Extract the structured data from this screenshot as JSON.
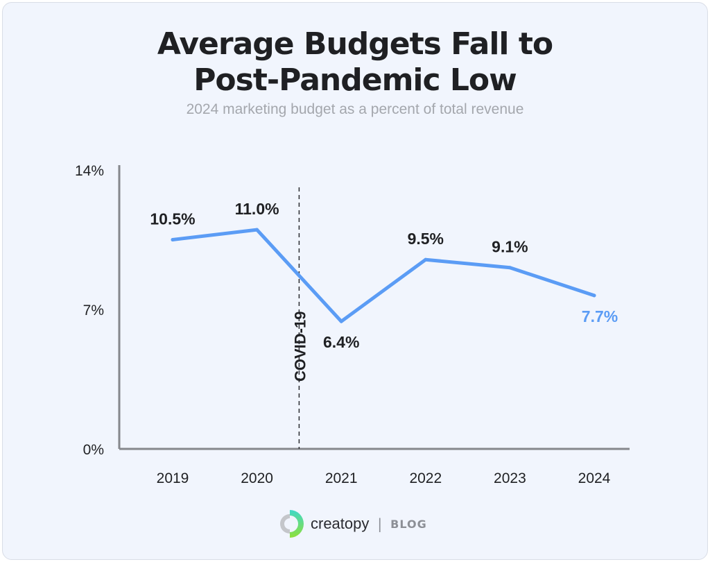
{
  "colors": {
    "line": "#5b9cf5",
    "text": "#1f2023",
    "axis": "#85878c",
    "highlight": "#5b9cf5"
  },
  "chart_data": {
    "type": "line",
    "title": "Average Budgets Fall to Post-Pandemic Low",
    "title_lines": [
      "Average Budgets Fall to",
      "Post-Pandemic Low"
    ],
    "subtitle": "2024 marketing budget as a percent of total revenue",
    "categories": [
      "2019",
      "2020",
      "2021",
      "2022",
      "2023",
      "2024"
    ],
    "values": [
      10.5,
      11.0,
      6.4,
      9.5,
      9.1,
      7.7
    ],
    "data_labels": [
      "10.5%",
      "11.0%",
      "6.4%",
      "9.5%",
      "9.1%",
      "7.7%"
    ],
    "ylim": [
      0,
      14
    ],
    "yticks": [
      {
        "value": 0,
        "label": "0%"
      },
      {
        "value": 7,
        "label": "7%"
      },
      {
        "value": 14,
        "label": "14%"
      }
    ],
    "xlabel": "",
    "ylabel": "",
    "grid": false,
    "annotation": {
      "label": "COVID-19",
      "between": [
        "2020",
        "2021"
      ]
    }
  },
  "footer": {
    "brand": "creatopy",
    "separator": "|",
    "section": "BLOG"
  }
}
